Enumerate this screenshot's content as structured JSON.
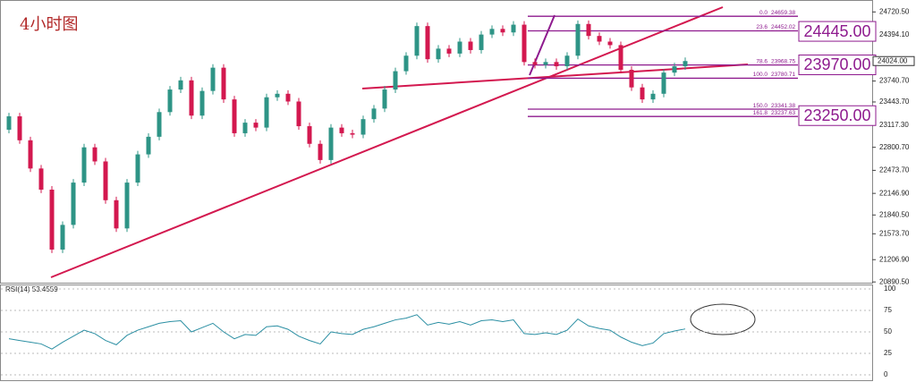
{
  "chart_data": {
    "type": "candlestick",
    "title": "4小时图",
    "open": [
      23050,
      23240,
      22900,
      22500,
      22200,
      21350,
      21700,
      22300,
      22800,
      22600,
      22050,
      21650,
      22300,
      22700,
      22950,
      23300,
      23620,
      23750,
      23250,
      23600,
      23930,
      23480,
      23000,
      23150,
      23080,
      23510,
      23560,
      23450,
      23100,
      22850,
      22620,
      23080,
      23000,
      22980,
      23200,
      23350,
      23620,
      23880,
      24100,
      24520,
      24050,
      24200,
      24130,
      24300,
      24180,
      24400,
      24480,
      24430,
      24540,
      24010,
      23970,
      24010,
      23950,
      24100,
      24550,
      24380,
      24300,
      24250,
      23900,
      23650,
      23480,
      23560,
      23860,
      23950
    ],
    "high": [
      23290,
      23290,
      22950,
      22550,
      22250,
      21750,
      22350,
      22850,
      22850,
      22650,
      22100,
      22350,
      22750,
      23000,
      23350,
      23670,
      23800,
      23800,
      23650,
      23980,
      23980,
      23530,
      23200,
      23200,
      23560,
      23610,
      23610,
      23500,
      23150,
      22900,
      23130,
      23130,
      23050,
      23250,
      23400,
      23670,
      23930,
      24150,
      24570,
      24570,
      24250,
      24250,
      24350,
      24350,
      24450,
      24530,
      24530,
      24590,
      24590,
      24060,
      24060,
      24060,
      24150,
      24600,
      24600,
      24430,
      24350,
      24300,
      23950,
      23700,
      23610,
      23910,
      24000,
      24074
    ],
    "low": [
      23000,
      22850,
      22450,
      22150,
      21300,
      21300,
      21650,
      22250,
      22550,
      22000,
      21600,
      21600,
      22250,
      22650,
      22900,
      23250,
      23570,
      23200,
      23200,
      23550,
      23430,
      22950,
      22950,
      23030,
      23030,
      23460,
      23400,
      23050,
      22800,
      22570,
      22570,
      22950,
      22930,
      22930,
      23150,
      23300,
      23570,
      23830,
      24050,
      24000,
      24000,
      24080,
      24080,
      24130,
      24130,
      24350,
      24380,
      24380,
      23960,
      23920,
      23920,
      23900,
      23900,
      24050,
      24330,
      24250,
      24200,
      23850,
      23600,
      23430,
      23430,
      23510,
      23810,
      23900
    ],
    "close": [
      23240,
      22900,
      22500,
      22200,
      21350,
      21700,
      22300,
      22800,
      22600,
      22050,
      21650,
      22300,
      22700,
      22950,
      23300,
      23620,
      23750,
      23250,
      23600,
      23930,
      23480,
      23000,
      23150,
      23080,
      23510,
      23560,
      23450,
      23100,
      22850,
      22620,
      23080,
      23000,
      22980,
      23200,
      23350,
      23620,
      23880,
      24100,
      24520,
      24050,
      24200,
      24130,
      24300,
      24180,
      24400,
      24480,
      24430,
      24540,
      24010,
      23970,
      24010,
      23950,
      24100,
      24550,
      24380,
      24300,
      24250,
      23900,
      23650,
      23480,
      23560,
      23860,
      23950,
      24024
    ],
    "up_color": "#2e9486",
    "down_color": "#d3184f",
    "ylim": [
      20880,
      24890
    ],
    "yticks": [
      {
        "value": 24720.5,
        "label": "24720.50"
      },
      {
        "value": 24394.1,
        "label": "24394.10"
      },
      {
        "value": 23740.7,
        "label": "23740.70"
      },
      {
        "value": 23443.7,
        "label": "23443.70"
      },
      {
        "value": 23117.3,
        "label": "23117.30"
      },
      {
        "value": 22800.7,
        "label": "22800.70"
      },
      {
        "value": 22473.7,
        "label": "22473.70"
      },
      {
        "value": 22146.9,
        "label": "22146.90"
      },
      {
        "value": 21840.5,
        "label": "21840.50"
      },
      {
        "value": 21573.7,
        "label": "21573.70"
      },
      {
        "value": 21206.9,
        "label": "21206.90"
      },
      {
        "value": 20890.5,
        "label": "20890.50"
      }
    ],
    "current_price": {
      "value": 24024,
      "label": "24024.00"
    },
    "fib_color": "#8e1a8e",
    "fib_levels": [
      {
        "level": "0.0",
        "price": 24659.38
      },
      {
        "level": "23.6",
        "price": 24452.02
      },
      {
        "level": "78.6",
        "price": 23968.75
      },
      {
        "level": "100.0",
        "price": 23780.71
      },
      {
        "level": "150.0",
        "price": 23341.38
      },
      {
        "level": "161.8",
        "price": 23237.63
      }
    ],
    "price_boxes": [
      {
        "value": 24445,
        "label": "24445.00"
      },
      {
        "value": 23970,
        "label": "23970.00"
      },
      {
        "value": 23250,
        "label": "23250.00"
      }
    ],
    "rsi": {
      "label": "RSI(14) 53.4559",
      "color": "#2b8fa3",
      "values": [
        42,
        40,
        38,
        36,
        30,
        38,
        45,
        52,
        48,
        40,
        35,
        46,
        52,
        56,
        60,
        62,
        63,
        50,
        55,
        60,
        50,
        42,
        47,
        46,
        56,
        57,
        53,
        45,
        40,
        36,
        50,
        48,
        47,
        53,
        56,
        60,
        64,
        66,
        70,
        58,
        61,
        59,
        62,
        58,
        63,
        64,
        62,
        64,
        48,
        47,
        49,
        47,
        52,
        65,
        57,
        54,
        52,
        44,
        38,
        34,
        37,
        48,
        51,
        53.4559
      ],
      "ylim": [
        0,
        100
      ],
      "yticks": [
        100,
        75,
        50,
        25,
        0
      ]
    }
  }
}
